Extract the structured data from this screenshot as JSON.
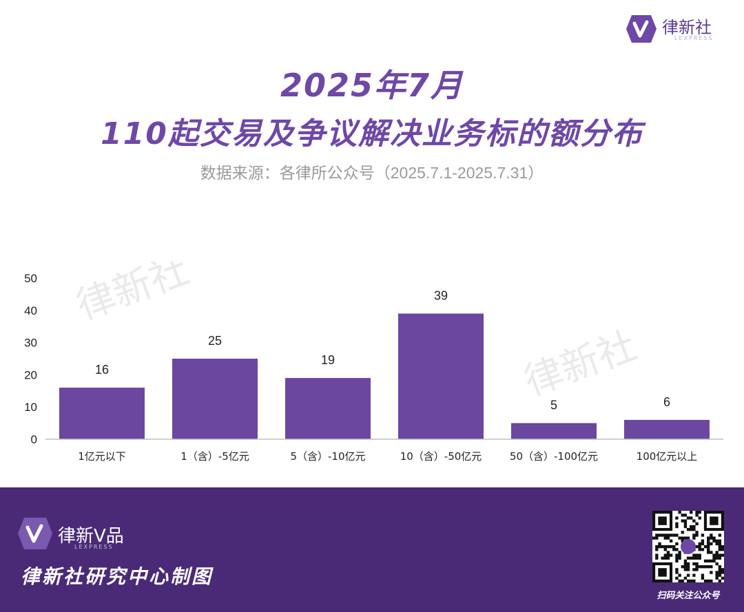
{
  "brand": {
    "name": "律新社",
    "sub": "LEXPRESS",
    "accent": "#6e48a6",
    "bar_color": "#6b47a0",
    "footer_bg": "#4a2a76"
  },
  "header": {
    "title_line1": "2025年7月",
    "title_line2": "110起交易及争议解决业务标的额分布",
    "source": "数据来源：各律所公众号（2025.7.1-2025.7.31）"
  },
  "watermark": "律新社",
  "chart_data": {
    "type": "bar",
    "title": "",
    "xlabel": "",
    "ylabel": "",
    "categories": [
      "1亿元以下",
      "1（含）-5亿元",
      "5（含）-10亿元",
      "10（含）-50亿元",
      "50（含）-100亿元",
      "100亿元以上"
    ],
    "values": [
      16,
      25,
      19,
      39,
      5,
      6
    ],
    "ylim": [
      0,
      50
    ],
    "yticks": [
      0,
      10,
      20,
      30,
      40,
      50
    ],
    "grid": false,
    "legend": "none"
  },
  "footer": {
    "brand": "律新V品",
    "brand_sub": "LEXPRESS",
    "caption": "律新社研究中心制图",
    "qr_caption": "扫码关注公众号"
  }
}
